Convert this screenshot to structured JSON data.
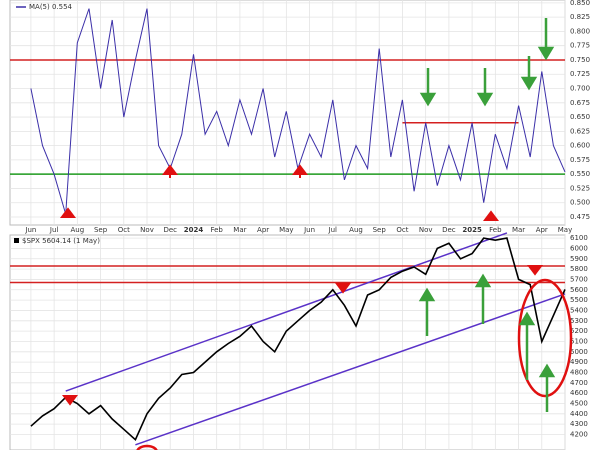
{
  "chart_data": [
    {
      "type": "line",
      "legend": "MA(5) 0.554",
      "categories": [
        "Jun",
        null,
        "Jul",
        null,
        "Aug",
        null,
        "Sep",
        null,
        "Oct",
        null,
        "Nov",
        null,
        "Dec",
        null,
        "2024",
        null,
        "Feb",
        null,
        "Mar",
        null,
        "Apr",
        null,
        "May",
        null,
        "Jun",
        null,
        "Jul",
        null,
        "Aug",
        null,
        "Sep",
        null,
        "Oct",
        null,
        "Nov",
        null,
        "Dec",
        null,
        "2025",
        null,
        "Feb",
        null,
        "Mar",
        null,
        "Apr",
        null,
        "May"
      ],
      "series": [
        {
          "name": "MA(5)",
          "color": "#3b2fa8",
          "values": [
            0.7,
            0.6,
            0.55,
            0.48,
            0.78,
            0.84,
            0.7,
            0.82,
            0.65,
            0.75,
            0.84,
            0.6,
            0.56,
            0.62,
            0.76,
            0.62,
            0.66,
            0.6,
            0.68,
            0.62,
            0.7,
            0.58,
            0.66,
            0.56,
            0.62,
            0.58,
            0.68,
            0.54,
            0.6,
            0.56,
            0.77,
            0.58,
            0.68,
            0.52,
            0.64,
            0.53,
            0.6,
            0.54,
            0.64,
            0.5,
            0.62,
            0.56,
            0.67,
            0.58,
            0.73,
            0.6,
            0.554
          ]
        }
      ],
      "ylim": [
        0.461,
        0.855
      ],
      "yticks": [
        0.475,
        {
          "value": 0.5,
          "label": "0.500"
        },
        0.525,
        {
          "value": 0.55,
          "label": "0.550"
        },
        0.575,
        {
          "value": 0.6,
          "label": "0.600"
        },
        0.625,
        {
          "value": 0.65,
          "label": "0.650"
        },
        0.675,
        {
          "value": 0.7,
          "label": "0.700"
        },
        0.725,
        {
          "value": 0.75,
          "label": "0.750"
        },
        0.775,
        {
          "value": 0.8,
          "label": "0.800"
        },
        0.825,
        {
          "value": 0.85,
          "label": "0.850"
        }
      ],
      "reference_lines": [
        {
          "value": 0.75,
          "color": "#d42020"
        },
        {
          "value": 0.55,
          "color": "#1e9a1e"
        },
        {
          "value": 0.64,
          "color": "#d42020",
          "from": 32,
          "to": 42
        }
      ],
      "grid": true
    },
    {
      "type": "line",
      "legend": "$SPX 5604.14 (1 May)",
      "series": [
        {
          "name": "$SPX",
          "color": "#000000",
          "values": [
            4280,
            4380,
            4450,
            4560,
            4500,
            4400,
            4480,
            4350,
            4250,
            4150,
            4400,
            4550,
            4650,
            4780,
            4800,
            4900,
            5000,
            5080,
            5150,
            5250,
            5100,
            5000,
            5200,
            5300,
            5400,
            5480,
            5600,
            5450,
            5250,
            5550,
            5600,
            5720,
            5780,
            5820,
            5750,
            6000,
            6050,
            5900,
            5950,
            6100,
            6080,
            6100,
            5700,
            5650,
            5100,
            5350,
            5604.14
          ]
        }
      ],
      "ylim": [
        4050,
        6130
      ],
      "yticks": [
        4200,
        4300,
        4400,
        4500,
        4600,
        4700,
        4800,
        4900,
        5000,
        5100,
        5200,
        5300,
        5400,
        5500,
        5600,
        5700,
        5800,
        5900,
        6000,
        6100
      ],
      "reference_lines": [
        {
          "value": 5830,
          "color": "#d42020"
        },
        {
          "value": 5670,
          "color": "#d42020"
        }
      ],
      "channels": [
        {
          "color": "#5a32c8",
          "from": [
            3,
            4620
          ],
          "to": [
            41,
            6150
          ]
        },
        {
          "color": "#5a32c8",
          "from": [
            9,
            4100
          ],
          "to": [
            46,
            5560
          ]
        }
      ],
      "grid": true
    }
  ]
}
